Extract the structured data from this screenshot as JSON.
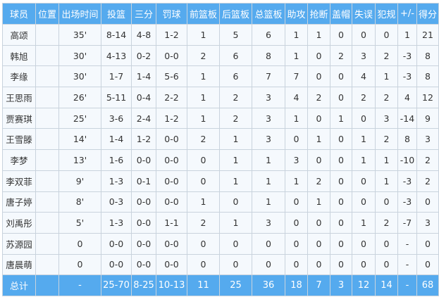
{
  "table": {
    "headers": [
      "球员",
      "位置",
      "出场时间",
      "投篮",
      "三分",
      "罚球",
      "前篮板",
      "后篮板",
      "总篮板",
      "助攻",
      "抢断",
      "盖帽",
      "失误",
      "犯规",
      "+/-",
      "得分"
    ],
    "rows": [
      [
        "高颂",
        "",
        "35'",
        "8-14",
        "4-8",
        "1-2",
        "1",
        "5",
        "6",
        "1",
        "1",
        "0",
        "0",
        "0",
        "1",
        "21"
      ],
      [
        "韩旭",
        "",
        "30'",
        "4-13",
        "0-2",
        "0-0",
        "2",
        "6",
        "8",
        "1",
        "0",
        "2",
        "3",
        "2",
        "-3",
        "8"
      ],
      [
        "李缘",
        "",
        "30'",
        "1-7",
        "1-4",
        "5-6",
        "1",
        "6",
        "7",
        "7",
        "0",
        "0",
        "4",
        "1",
        "-3",
        "8"
      ],
      [
        "王思雨",
        "",
        "26'",
        "5-11",
        "0-4",
        "2-2",
        "1",
        "2",
        "3",
        "4",
        "2",
        "0",
        "2",
        "2",
        "4",
        "12"
      ],
      [
        "贾赛琪",
        "",
        "25'",
        "3-6",
        "2-4",
        "1-2",
        "1",
        "2",
        "3",
        "1",
        "0",
        "1",
        "0",
        "3",
        "-14",
        "9"
      ],
      [
        "王雪滕",
        "",
        "14'",
        "1-4",
        "1-2",
        "0-0",
        "2",
        "1",
        "3",
        "0",
        "1",
        "0",
        "1",
        "2",
        "8",
        "3"
      ],
      [
        "李梦",
        "",
        "13'",
        "1-6",
        "0-0",
        "0-0",
        "0",
        "1",
        "1",
        "3",
        "0",
        "0",
        "1",
        "1",
        "-10",
        "2"
      ],
      [
        "李双菲",
        "",
        "9'",
        "1-3",
        "0-1",
        "0-0",
        "0",
        "1",
        "1",
        "1",
        "2",
        "0",
        "0",
        "1",
        "-3",
        "2"
      ],
      [
        "唐子婷",
        "",
        "8'",
        "0-3",
        "0-0",
        "0-0",
        "1",
        "0",
        "1",
        "0",
        "1",
        "0",
        "0",
        "0",
        "-3",
        "0"
      ],
      [
        "刘禹彤",
        "",
        "5'",
        "1-3",
        "0-0",
        "1-1",
        "2",
        "1",
        "3",
        "0",
        "0",
        "0",
        "1",
        "2",
        "-7",
        "3"
      ],
      [
        "苏源园",
        "",
        "0",
        "0-0",
        "0-0",
        "0-0",
        "0",
        "0",
        "0",
        "0",
        "0",
        "0",
        "0",
        "0",
        "-",
        "0"
      ],
      [
        "唐晨萌",
        "",
        "0",
        "0-0",
        "0-0",
        "0-0",
        "0",
        "0",
        "0",
        "0",
        "0",
        "0",
        "0",
        "0",
        "-",
        "0"
      ]
    ],
    "total": [
      "总计",
      "",
      "-",
      "25-70",
      "8-25",
      "10-13",
      "11",
      "25",
      "36",
      "18",
      "7",
      "3",
      "12",
      "14",
      "-",
      "68"
    ]
  },
  "colors": {
    "header_bg": "#55aaee",
    "row_bg": "#f5f9fd",
    "border": "#c9d3dd"
  }
}
